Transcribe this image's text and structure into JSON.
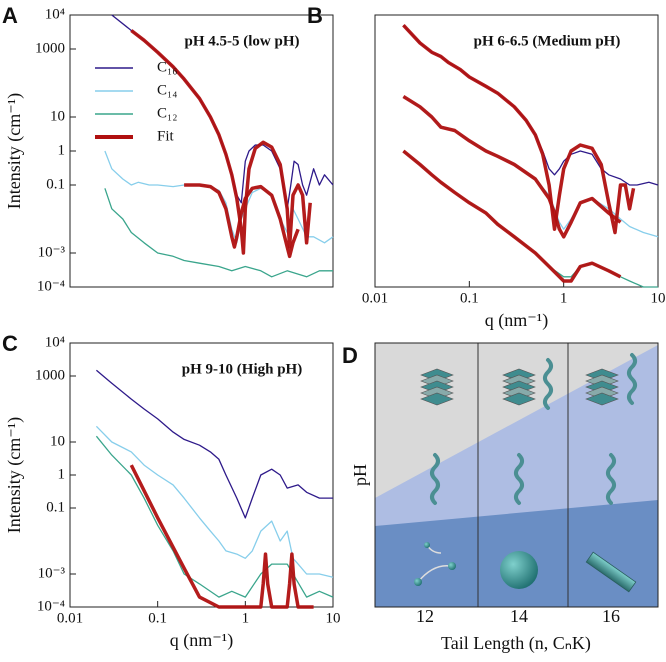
{
  "chart_data": [
    {
      "type": "line",
      "panel_label": "A",
      "title": "pH 4.5-5 (low pH)",
      "y_label": "Intensity (cm⁻¹)",
      "xscale": "log",
      "yscale": "log",
      "xlim": [
        0.01,
        10
      ],
      "ylim": [
        0.0001,
        10000
      ],
      "yticks": [
        {
          "value": 10000,
          "label": "10⁴"
        },
        1000,
        10,
        1,
        0.1,
        {
          "value": 0.001,
          "label": "10⁻³"
        },
        {
          "value": 0.0001,
          "label": "10⁻⁴"
        }
      ],
      "legend": "upper left",
      "series": [
        {
          "name": "C₁₆",
          "color": "#2e1a8a",
          "x": [
            0.03,
            0.05,
            0.07,
            0.1,
            0.15,
            0.2,
            0.3,
            0.4,
            0.5,
            0.6,
            0.7,
            0.8,
            0.9,
            1.0,
            1.1,
            1.3,
            1.6,
            2,
            2.5,
            3,
            3.3,
            3.6,
            4,
            4.5,
            5,
            6,
            7,
            8,
            10
          ],
          "values": [
            10000,
            3500,
            1800,
            800,
            300,
            130,
            35,
            10,
            3,
            0.8,
            0.2,
            0.05,
            0.03,
            0.5,
            1,
            1.5,
            1.5,
            1,
            0.3,
            0.02,
            0.1,
            0.5,
            0.4,
            0.1,
            0.05,
            0.3,
            0.1,
            0.2,
            0.1
          ]
        },
        {
          "name": "C₁₄",
          "color": "#87ceeb",
          "x": [
            0.025,
            0.03,
            0.04,
            0.05,
            0.06,
            0.08,
            0.1,
            0.15,
            0.2,
            0.3,
            0.4,
            0.5,
            0.6,
            0.7,
            0.8,
            0.9,
            1,
            1.2,
            1.5,
            2,
            2.5,
            3,
            3.5,
            4,
            5,
            6,
            8,
            10
          ],
          "values": [
            1,
            0.3,
            0.15,
            0.1,
            0.12,
            0.1,
            0.1,
            0.09,
            0.1,
            0.1,
            0.09,
            0.07,
            0.03,
            0.005,
            0.002,
            0.01,
            0.02,
            0.06,
            0.08,
            0.05,
            0.01,
            0.004,
            0.02,
            0.01,
            0.003,
            0.003,
            0.002,
            0.003
          ]
        },
        {
          "name": "C₁₂",
          "color": "#3aa58c",
          "x": [
            0.025,
            0.03,
            0.04,
            0.05,
            0.07,
            0.1,
            0.15,
            0.2,
            0.3,
            0.5,
            0.7,
            1,
            1.5,
            2,
            3,
            5,
            7,
            10
          ],
          "values": [
            0.08,
            0.02,
            0.01,
            0.004,
            0.002,
            0.001,
            0.0008,
            0.0006,
            0.0005,
            0.0004,
            0.0003,
            0.0004,
            0.0003,
            0.0002,
            0.0003,
            0.0002,
            0.0003,
            0.0003
          ]
        },
        {
          "name": "Fit",
          "color": "#b01010",
          "fit": true,
          "x": [
            0.05,
            0.07,
            0.1,
            0.15,
            0.2,
            0.3,
            0.4,
            0.5,
            0.6,
            0.7,
            0.8,
            0.9,
            0.95,
            1.0,
            1.1,
            1.3,
            1.6,
            2,
            2.5,
            3,
            3.2,
            3.5,
            4,
            4.5,
            5,
            5.5
          ],
          "values": [
            3500,
            1800,
            800,
            300,
            130,
            35,
            10,
            3,
            0.8,
            0.2,
            0.04,
            0.005,
            0.001,
            0.02,
            0.3,
            1.2,
            1.8,
            1.3,
            0.4,
            0.02,
            0.0015,
            0.05,
            0.1,
            0.05,
            0.002,
            0.03
          ]
        },
        {
          "color": "#b01010",
          "fit": true,
          "x": [
            0.2,
            0.3,
            0.4,
            0.5,
            0.6,
            0.7,
            0.75,
            0.8,
            0.9,
            1,
            1.2,
            1.5,
            2,
            2.5,
            3,
            3.2,
            3.5,
            4
          ],
          "values": [
            0.1,
            0.1,
            0.09,
            0.06,
            0.02,
            0.003,
            0.0015,
            0.003,
            0.015,
            0.04,
            0.08,
            0.09,
            0.05,
            0.01,
            0.0015,
            0.0008,
            0.002,
            0.005
          ]
        }
      ]
    },
    {
      "type": "line",
      "panel_label": "B",
      "title": "pH 6-6.5 (Medium pH)",
      "x_label": "q (nm⁻¹)",
      "xscale": "log",
      "yscale": "log",
      "xlim": [
        0.01,
        10
      ],
      "ylim": [
        0.0001,
        10000
      ],
      "xticks": [
        0.01,
        0.1,
        1,
        10
      ],
      "series": [
        {
          "color": "#2e1a8a",
          "x": [
            0.02,
            0.03,
            0.04,
            0.05,
            0.06,
            0.08,
            0.1,
            0.15,
            0.2,
            0.3,
            0.4,
            0.5,
            0.6,
            0.7,
            0.8,
            0.9,
            1,
            1.2,
            1.5,
            2,
            2.5,
            3,
            4,
            5,
            6,
            8,
            10
          ],
          "values": [
            5000,
            1500,
            800,
            600,
            400,
            250,
            150,
            80,
            50,
            20,
            8,
            3,
            1,
            0.3,
            0.2,
            0.3,
            0.5,
            0.8,
            1,
            0.8,
            0.3,
            0.2,
            0.15,
            0.1,
            0.1,
            0.12,
            0.1
          ]
        },
        {
          "color": "#87ceeb",
          "x": [
            0.02,
            0.03,
            0.04,
            0.05,
            0.07,
            0.1,
            0.15,
            0.2,
            0.3,
            0.5,
            0.7,
            0.8,
            0.9,
            1,
            1.2,
            1.5,
            2,
            3,
            4,
            5,
            7,
            10
          ],
          "values": [
            40,
            20,
            10,
            5,
            4,
            2,
            1,
            0.7,
            0.4,
            0.15,
            0.05,
            0.02,
            0.008,
            0.005,
            0.01,
            0.03,
            0.04,
            0.02,
            0.01,
            0.006,
            0.004,
            0.003
          ]
        },
        {
          "color": "#3aa58c",
          "x": [
            0.02,
            0.03,
            0.04,
            0.05,
            0.07,
            0.1,
            0.15,
            0.2,
            0.3,
            0.5,
            0.7,
            1,
            1.2,
            1.5,
            2,
            3,
            4,
            5,
            7,
            10
          ],
          "values": [
            1,
            0.4,
            0.2,
            0.12,
            0.06,
            0.03,
            0.015,
            0.007,
            0.003,
            0.001,
            0.0004,
            0.0002,
            0.0002,
            0.0004,
            0.0005,
            0.0003,
            0.0002,
            0.00015,
            0.0001,
            0.0001
          ]
        },
        {
          "color": "#b01010",
          "fit": true,
          "x": [
            0.02,
            0.03,
            0.04,
            0.05,
            0.06,
            0.08,
            0.1,
            0.15,
            0.2,
            0.3,
            0.4,
            0.5,
            0.6,
            0.7,
            0.8,
            0.9,
            1,
            1.2,
            1.5,
            2,
            2.5,
            3,
            3.5,
            4,
            4.5,
            5,
            5.5
          ],
          "values": [
            5000,
            1500,
            800,
            600,
            400,
            250,
            150,
            80,
            50,
            20,
            8,
            3,
            0.8,
            0.1,
            0.005,
            0.05,
            0.3,
            1,
            1.5,
            1.2,
            0.4,
            0.03,
            0.004,
            0.1,
            0.1,
            0.02,
            0.08
          ]
        },
        {
          "color": "#b01010",
          "fit": true,
          "x": [
            0.02,
            0.03,
            0.04,
            0.05,
            0.07,
            0.1,
            0.15,
            0.2,
            0.3,
            0.5,
            0.7,
            0.8,
            0.9,
            1,
            1.2,
            1.5,
            2,
            3,
            4
          ],
          "values": [
            40,
            20,
            10,
            5,
            4,
            2,
            1,
            0.7,
            0.4,
            0.15,
            0.04,
            0.015,
            0.005,
            0.003,
            0.008,
            0.03,
            0.04,
            0.015,
            0.008
          ]
        },
        {
          "color": "#b01010",
          "fit": true,
          "x": [
            0.02,
            0.03,
            0.04,
            0.05,
            0.07,
            0.1,
            0.15,
            0.2,
            0.3,
            0.5,
            0.7,
            1,
            1.2,
            1.5,
            2,
            3,
            4
          ],
          "values": [
            1,
            0.4,
            0.2,
            0.12,
            0.06,
            0.03,
            0.015,
            0.007,
            0.003,
            0.001,
            0.0004,
            0.00015,
            0.00015,
            0.0004,
            0.0005,
            0.0003,
            0.0002
          ]
        }
      ]
    },
    {
      "type": "line",
      "panel_label": "C",
      "title": "pH 9-10 (High pH)",
      "x_label": "q (nm⁻¹)",
      "y_label": "Intensity (cm⁻¹)",
      "xscale": "log",
      "yscale": "log",
      "xlim": [
        0.01,
        10
      ],
      "ylim": [
        0.0001,
        10000
      ],
      "xticks": [
        0.01,
        0.1,
        1,
        10
      ],
      "yticks": [
        {
          "value": 10000,
          "label": "10⁴"
        },
        1000,
        10,
        1,
        0.1,
        {
          "value": 0.001,
          "label": "10⁻³"
        },
        {
          "value": 0.0001,
          "label": "10⁻⁴"
        }
      ],
      "series": [
        {
          "color": "#2e1a8a",
          "x": [
            0.02,
            0.03,
            0.05,
            0.07,
            0.1,
            0.15,
            0.2,
            0.3,
            0.4,
            0.5,
            0.6,
            0.8,
            1,
            1.2,
            1.5,
            2,
            2.5,
            3,
            4,
            5,
            7,
            10
          ],
          "values": [
            1500,
            600,
            200,
            100,
            50,
            20,
            12,
            8,
            5,
            3,
            1,
            0.2,
            0.05,
            0.2,
            1,
            1.5,
            1,
            0.4,
            0.5,
            0.3,
            0.2,
            0.2
          ]
        },
        {
          "color": "#87ceeb",
          "x": [
            0.02,
            0.03,
            0.05,
            0.07,
            0.1,
            0.15,
            0.2,
            0.3,
            0.4,
            0.5,
            0.6,
            0.8,
            1,
            1.2,
            1.5,
            2,
            2.5,
            3,
            3.5,
            4,
            5,
            7,
            10
          ],
          "values": [
            30,
            10,
            5,
            2,
            1,
            0.5,
            0.2,
            0.05,
            0.02,
            0.01,
            0.005,
            0.004,
            0.003,
            0.005,
            0.02,
            0.04,
            0.01,
            0.02,
            0.003,
            0.002,
            0.001,
            0.001,
            0.0008
          ]
        },
        {
          "color": "#3aa58c",
          "x": [
            0.02,
            0.03,
            0.05,
            0.07,
            0.1,
            0.15,
            0.2,
            0.3,
            0.5,
            0.7,
            1,
            1.5,
            2,
            3,
            5,
            7,
            10
          ],
          "values": [
            15,
            4,
            1,
            0.2,
            0.03,
            0.005,
            0.001,
            0.0005,
            0.0002,
            0.0003,
            0.0002,
            0.001,
            0.002,
            0.002,
            0.0002,
            0.0003,
            0.0002
          ]
        },
        {
          "color": "#b01010",
          "fit": true,
          "x": [
            0.05,
            0.1,
            0.2,
            0.3,
            0.5,
            1,
            1.5,
            1.6,
            1.7,
            1.8,
            2,
            3,
            3.2,
            3.4,
            3.6,
            4,
            6
          ],
          "values": [
            2,
            0.05,
            0.0015,
            0.0002,
            0.0001,
            0.0001,
            0.0001,
            0.0005,
            0.004,
            0.0005,
            0.0001,
            0.0001,
            0.0005,
            0.004,
            0.0005,
            0.0001,
            0.0001
          ]
        }
      ]
    }
  ],
  "panel_d": {
    "panel_label": "D",
    "y_label": "pH",
    "x_label": "Tail Length (n, CₙK)",
    "x_ticks": [
      "12",
      "14",
      "16"
    ]
  }
}
